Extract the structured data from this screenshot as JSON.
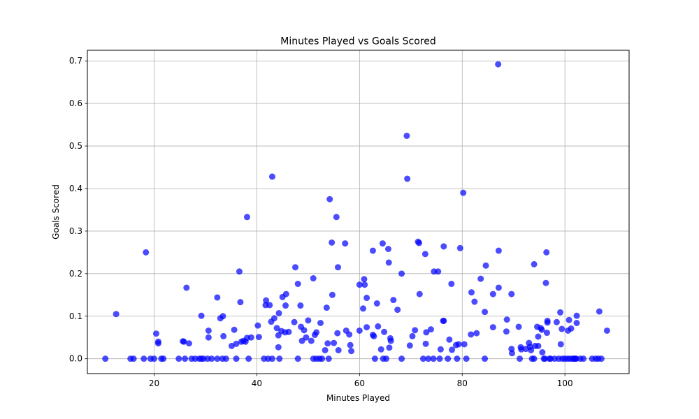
{
  "chart_data": {
    "type": "scatter",
    "title": "Minutes Played vs Goals Scored",
    "xlabel": "Minutes Played",
    "ylabel": "Goals Scored",
    "xlim": [
      7.0,
      112.5
    ],
    "ylim": [
      -0.035,
      0.725
    ],
    "xticks": [
      20,
      40,
      60,
      80,
      100
    ],
    "yticks": [
      0.0,
      0.1,
      0.2,
      0.3,
      0.4,
      0.5,
      0.6,
      0.7
    ],
    "grid": true,
    "point_color": "#0000ff",
    "points": [
      [
        10.5,
        0.0
      ],
      [
        12.6,
        0.105
      ],
      [
        15.4,
        0.0
      ],
      [
        16.0,
        0.0
      ],
      [
        18.0,
        0.0
      ],
      [
        18.4,
        0.25
      ],
      [
        19.3,
        0.0
      ],
      [
        20.0,
        0.0
      ],
      [
        20.4,
        0.059
      ],
      [
        20.8,
        0.04
      ],
      [
        20.8,
        0.036
      ],
      [
        21.4,
        0.0
      ],
      [
        21.8,
        0.0
      ],
      [
        24.8,
        0.0
      ],
      [
        25.6,
        0.041
      ],
      [
        25.8,
        0.04
      ],
      [
        26.0,
        0.0
      ],
      [
        26.3,
        0.167
      ],
      [
        26.8,
        0.036
      ],
      [
        27.3,
        0.0
      ],
      [
        28.0,
        0.0
      ],
      [
        28.8,
        0.0
      ],
      [
        29.2,
        0.0
      ],
      [
        29.2,
        0.101
      ],
      [
        29.6,
        0.0
      ],
      [
        30.4,
        0.0
      ],
      [
        30.6,
        0.05
      ],
      [
        30.6,
        0.066
      ],
      [
        31.2,
        0.0
      ],
      [
        32.3,
        0.144
      ],
      [
        32.3,
        0.0
      ],
      [
        32.9,
        0.095
      ],
      [
        33.3,
        0.0
      ],
      [
        33.4,
        0.1
      ],
      [
        33.5,
        0.053
      ],
      [
        34.0,
        0.0
      ],
      [
        35.1,
        0.03
      ],
      [
        35.6,
        0.068
      ],
      [
        36.0,
        0.035
      ],
      [
        36.0,
        0.0
      ],
      [
        36.6,
        0.205
      ],
      [
        36.8,
        0.133
      ],
      [
        37.0,
        0.04
      ],
      [
        37.4,
        0.042
      ],
      [
        37.8,
        0.04
      ],
      [
        38.1,
        0.333
      ],
      [
        38.1,
        0.049
      ],
      [
        38.4,
        0.0
      ],
      [
        38.9,
        0.05
      ],
      [
        40.2,
        0.078
      ],
      [
        40.4,
        0.051
      ],
      [
        41.4,
        0.0
      ],
      [
        41.7,
        0.126
      ],
      [
        41.8,
        0.137
      ],
      [
        42.2,
        0.0
      ],
      [
        42.5,
        0.126
      ],
      [
        42.8,
        0.087
      ],
      [
        43.0,
        0.428
      ],
      [
        43.0,
        0.0
      ],
      [
        43.4,
        0.095
      ],
      [
        43.9,
        0.072
      ],
      [
        44.2,
        0.055
      ],
      [
        44.2,
        0.027
      ],
      [
        44.3,
        0.107
      ],
      [
        44.4,
        0.0
      ],
      [
        44.8,
        0.065
      ],
      [
        45.0,
        0.145
      ],
      [
        45.5,
        0.062
      ],
      [
        45.6,
        0.125
      ],
      [
        45.7,
        0.152
      ],
      [
        46.2,
        0.063
      ],
      [
        47.3,
        0.086
      ],
      [
        47.5,
        0.215
      ],
      [
        48.0,
        0.0
      ],
      [
        48.0,
        0.176
      ],
      [
        48.5,
        0.125
      ],
      [
        48.6,
        0.075
      ],
      [
        48.8,
        0.042
      ],
      [
        49.2,
        0.067
      ],
      [
        49.6,
        0.05
      ],
      [
        50.0,
        0.09
      ],
      [
        50.6,
        0.042
      ],
      [
        51.0,
        0.189
      ],
      [
        51.0,
        0.0
      ],
      [
        51.3,
        0.056
      ],
      [
        51.6,
        0.0
      ],
      [
        51.6,
        0.062
      ],
      [
        52.2,
        0.0
      ],
      [
        52.4,
        0.084
      ],
      [
        52.7,
        0.0
      ],
      [
        53.3,
        0.02
      ],
      [
        53.6,
        0.12
      ],
      [
        53.8,
        0.036
      ],
      [
        54.0,
        0.0
      ],
      [
        54.2,
        0.375
      ],
      [
        54.6,
        0.273
      ],
      [
        54.7,
        0.15
      ],
      [
        55.0,
        0.037
      ],
      [
        55.5,
        0.333
      ],
      [
        55.7,
        0.06
      ],
      [
        55.8,
        0.215
      ],
      [
        55.9,
        0.02
      ],
      [
        57.2,
        0.271
      ],
      [
        57.4,
        0.066
      ],
      [
        58.0,
        0.057
      ],
      [
        58.2,
        0.032
      ],
      [
        58.4,
        0.018
      ],
      [
        60.0,
        0.174
      ],
      [
        60.0,
        0.066
      ],
      [
        60.7,
        0.118
      ],
      [
        60.9,
        0.187
      ],
      [
        61.0,
        0.174
      ],
      [
        61.4,
        0.074
      ],
      [
        61.4,
        0.143
      ],
      [
        62.6,
        0.254
      ],
      [
        62.6,
        0.056
      ],
      [
        62.8,
        0.053
      ],
      [
        63.0,
        0.0
      ],
      [
        63.4,
        0.13
      ],
      [
        63.6,
        0.076
      ],
      [
        64.2,
        0.022
      ],
      [
        64.5,
        0.271
      ],
      [
        64.6,
        0.0
      ],
      [
        64.8,
        0.063
      ],
      [
        65.2,
        0.0
      ],
      [
        65.6,
        0.258
      ],
      [
        65.7,
        0.226
      ],
      [
        65.8,
        0.026
      ],
      [
        66.0,
        0.048
      ],
      [
        66.1,
        0.042
      ],
      [
        66.6,
        0.138
      ],
      [
        67.4,
        0.115
      ],
      [
        68.2,
        0.0
      ],
      [
        68.2,
        0.2
      ],
      [
        69.2,
        0.524
      ],
      [
        69.3,
        0.423
      ],
      [
        69.8,
        0.031
      ],
      [
        70.3,
        0.053
      ],
      [
        70.8,
        0.067
      ],
      [
        71.4,
        0.275
      ],
      [
        71.6,
        0.272
      ],
      [
        71.7,
        0.152
      ],
      [
        72.4,
        0.0
      ],
      [
        72.8,
        0.246
      ],
      [
        72.9,
        0.035
      ],
      [
        73.0,
        0.062
      ],
      [
        73.4,
        0.0
      ],
      [
        73.9,
        0.069
      ],
      [
        74.4,
        0.0
      ],
      [
        74.5,
        0.205
      ],
      [
        75.3,
        0.205
      ],
      [
        75.6,
        0.0
      ],
      [
        75.8,
        0.022
      ],
      [
        76.3,
        0.089
      ],
      [
        76.4,
        0.089
      ],
      [
        76.4,
        0.264
      ],
      [
        77.2,
        0.0
      ],
      [
        77.5,
        0.045
      ],
      [
        77.9,
        0.176
      ],
      [
        78.0,
        0.021
      ],
      [
        78.8,
        0.032
      ],
      [
        79.0,
        0.0
      ],
      [
        79.3,
        0.034
      ],
      [
        79.6,
        0.26
      ],
      [
        80.2,
        0.39
      ],
      [
        80.4,
        0.034
      ],
      [
        80.8,
        0.0
      ],
      [
        81.7,
        0.057
      ],
      [
        81.8,
        0.156
      ],
      [
        82.4,
        0.134
      ],
      [
        82.8,
        0.06
      ],
      [
        83.6,
        0.188
      ],
      [
        84.4,
        0.11
      ],
      [
        84.4,
        0.0
      ],
      [
        84.6,
        0.219
      ],
      [
        86.0,
        0.074
      ],
      [
        86.0,
        0.152
      ],
      [
        87.0,
        0.692
      ],
      [
        87.1,
        0.254
      ],
      [
        87.1,
        0.167
      ],
      [
        88.6,
        0.064
      ],
      [
        88.7,
        0.092
      ],
      [
        89.6,
        0.152
      ],
      [
        89.6,
        0.023
      ],
      [
        89.7,
        0.013
      ],
      [
        91.0,
        0.075
      ],
      [
        91.2,
        0.0
      ],
      [
        91.4,
        0.027
      ],
      [
        91.5,
        0.022
      ],
      [
        92.4,
        0.023
      ],
      [
        93.0,
        0.037
      ],
      [
        93.2,
        0.028
      ],
      [
        93.4,
        0.02
      ],
      [
        93.6,
        0.0
      ],
      [
        94.0,
        0.222
      ],
      [
        94.0,
        0.0
      ],
      [
        94.2,
        0.03
      ],
      [
        94.6,
        0.075
      ],
      [
        94.8,
        0.03
      ],
      [
        94.8,
        0.052
      ],
      [
        95.3,
        0.072
      ],
      [
        95.5,
        0.068
      ],
      [
        95.6,
        0.015
      ],
      [
        95.9,
        0.0
      ],
      [
        96.1,
        0.0
      ],
      [
        96.3,
        0.178
      ],
      [
        96.4,
        0.25
      ],
      [
        96.5,
        0.061
      ],
      [
        96.6,
        0.085
      ],
      [
        96.6,
        0.089
      ],
      [
        97.0,
        0.0
      ],
      [
        97.2,
        0.0
      ],
      [
        98.0,
        0.0
      ],
      [
        98.4,
        0.086
      ],
      [
        98.8,
        0.0
      ],
      [
        99.1,
        0.109
      ],
      [
        99.2,
        0.034
      ],
      [
        99.4,
        0.07
      ],
      [
        99.5,
        0.0
      ],
      [
        100.0,
        0.0
      ],
      [
        100.5,
        0.0
      ],
      [
        100.6,
        0.066
      ],
      [
        100.8,
        0.091
      ],
      [
        101.0,
        0.0
      ],
      [
        101.2,
        0.071
      ],
      [
        101.5,
        0.0
      ],
      [
        101.8,
        0.0
      ],
      [
        102.0,
        0.0
      ],
      [
        102.2,
        0.0
      ],
      [
        102.3,
        0.084
      ],
      [
        102.3,
        0.101
      ],
      [
        103.0,
        0.0
      ],
      [
        103.6,
        0.0
      ],
      [
        105.3,
        0.0
      ],
      [
        106.0,
        0.0
      ],
      [
        106.5,
        0.0
      ],
      [
        106.7,
        0.111
      ],
      [
        107.1,
        0.0
      ],
      [
        108.2,
        0.066
      ]
    ]
  }
}
